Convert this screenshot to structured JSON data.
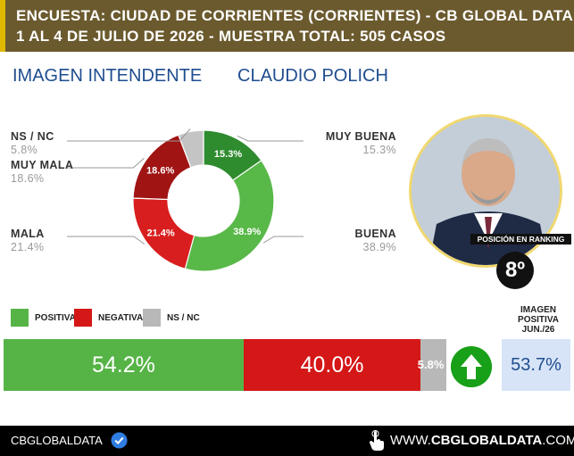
{
  "header": {
    "line1": "ENCUESTA: CIUDAD DE CORRIENTES (CORRIENTES) - CB GLOBAL DATA",
    "line2": "1 AL 4 DE JULIO DE 2026 - MUESTRA TOTAL: 505 CASOS"
  },
  "titles": {
    "left": "IMAGEN INTENDENTE",
    "right": "CLAUDIO POLICH"
  },
  "chart_data": [
    {
      "type": "pie",
      "categories": [
        "MUY BUENA",
        "BUENA",
        "MALA",
        "MUY MALA",
        "NS / NC"
      ],
      "values": [
        15.3,
        38.9,
        21.4,
        18.6,
        5.8
      ],
      "labels": [
        "15.3%",
        "38.9%",
        "21.4%",
        "18.6%",
        "5.8%"
      ],
      "slice_labels": [
        "15.3%",
        "38.9%",
        "21.4%",
        "18.6%",
        ""
      ],
      "colors": [
        "#2e8b2e",
        "#58b848",
        "#d81e1e",
        "#a01414",
        "#c4c4c4"
      ]
    },
    {
      "type": "bar",
      "categories": [
        "POSITIVA",
        "NEGATIVA",
        "NS / NC"
      ],
      "values": [
        54.2,
        40.0,
        5.8
      ],
      "labels": [
        "54.2%",
        "40.0%",
        "5.8%"
      ],
      "colors": [
        "#56b446",
        "#d41717",
        "#b8b8b8"
      ]
    }
  ],
  "legend": [
    {
      "label": "POSITIVA",
      "color": "#56b446"
    },
    {
      "label": "NEGATIVA",
      "color": "#d41717"
    },
    {
      "label": "NS / NC",
      "color": "#b8b8b8"
    }
  ],
  "ranking": {
    "label": "POSICIÓN EN RANKING",
    "value": "8º"
  },
  "imagen_positiva": {
    "line1": "IMAGEN",
    "line2": "POSITIVA",
    "line3": "JUN./26",
    "value": "53.7%"
  },
  "footer": {
    "left": "CBGLOBALDATA",
    "right_prefix": "WWW.",
    "right_bold": "CBGLOBALDATA",
    "right_suffix": ".COM"
  },
  "icons": {
    "arrow": "arrow-up-icon",
    "check": "verified-check-icon",
    "hand": "pointer-hand-icon"
  },
  "colors": {
    "header_bg": "#6b5a2e",
    "accent": "#e0b800",
    "title_blue": "#1f4d8f"
  }
}
